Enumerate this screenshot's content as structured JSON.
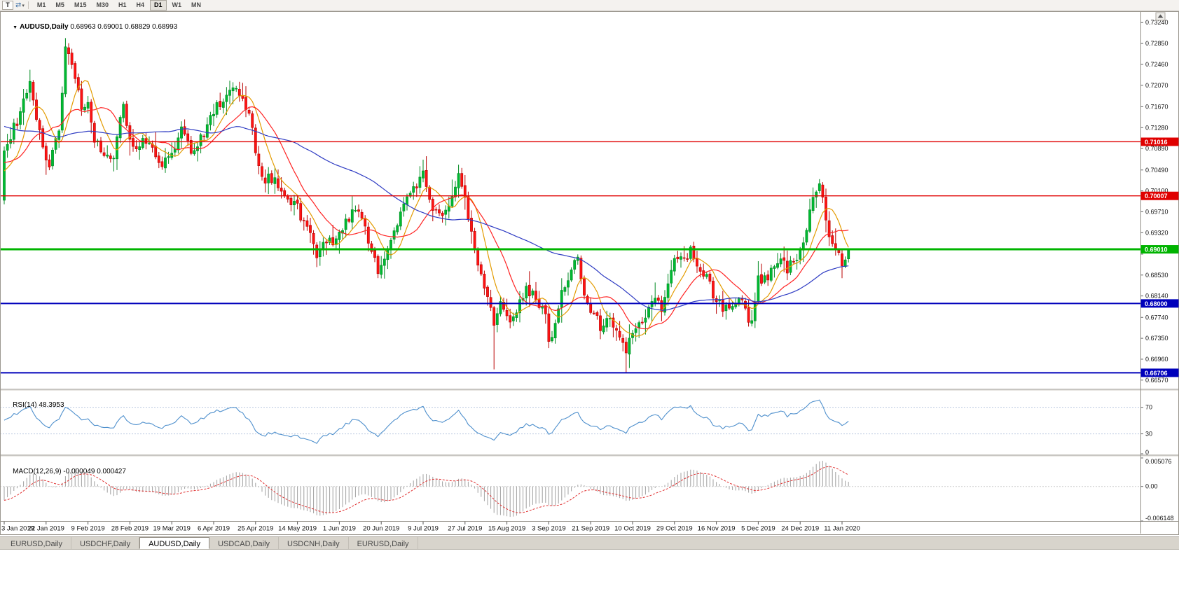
{
  "toolbar": {
    "tool_button": "T",
    "tool_icon": "⇄",
    "caret_icon": "▾",
    "timeframes": [
      "M1",
      "M5",
      "M15",
      "M30",
      "H1",
      "H4",
      "D1",
      "W1",
      "MN"
    ],
    "active_timeframe": "D1"
  },
  "chart": {
    "title": {
      "collapse_icon": "▼",
      "symbol": "AUDUSD,Daily",
      "ohlc": "0.68963 0.69001 0.68829 0.68993"
    }
  },
  "chart_data": {
    "type": "candlestick",
    "symbol": "AUDUSD",
    "timeframe": "Daily",
    "ohlc_display": {
      "open": "0.68963",
      "high": "0.69001",
      "low": "0.68829",
      "close": "0.68993"
    },
    "price_axis": {
      "labels": [
        "0.73240",
        "0.72850",
        "0.72460",
        "0.72070",
        "0.71670",
        "0.71280",
        "0.70890",
        "0.70490",
        "0.70100",
        "0.69710",
        "0.69320",
        "0.68920",
        "0.68530",
        "0.68140",
        "0.67740",
        "0.67350",
        "0.66960",
        "0.66570"
      ],
      "max": 0.734,
      "min": 0.6645
    },
    "x_axis": {
      "labels": [
        "3 Jan 2019",
        "22 Jan 2019",
        "9 Feb 2019",
        "28 Feb 2019",
        "19 Mar 2019",
        "6 Apr 2019",
        "25 Apr 2019",
        "14 May 2019",
        "1 Jun 2019",
        "20 Jun 2019",
        "9 Jul 2019",
        "27 Jul 2019",
        "15 Aug 2019",
        "3 Sep 2019",
        "21 Sep 2019",
        "10 Oct 2019",
        "29 Oct 2019",
        "16 Nov 2019",
        "5 Dec 2019",
        "24 Dec 2019",
        "11 Jan 2020"
      ],
      "candles_per_tick": 13
    },
    "levels": [
      {
        "label": "0.71016",
        "value": 0.71016,
        "color": "#e00000",
        "width": 1.4
      },
      {
        "label": "0.70007",
        "value": 0.70007,
        "color": "#e00000",
        "width": 1.4
      },
      {
        "label": "0.69010",
        "value": 0.6901,
        "color": "#00b400",
        "width": 3
      },
      {
        "label": "0.68000",
        "value": 0.68,
        "color": "#0000bb",
        "width": 2
      },
      {
        "label": "0.66706",
        "value": 0.66706,
        "color": "#0000bb",
        "width": 2
      }
    ],
    "candles": {
      "count": 323,
      "visible_from": 60,
      "seed": 42,
      "last_close": 0.68993,
      "anchors": [
        [
          0,
          0.7245
        ],
        [
          20,
          0.7165
        ],
        [
          40,
          0.711
        ],
        [
          56,
          0.706
        ],
        [
          59,
          0.6985
        ],
        [
          60,
          0.7085
        ],
        [
          62,
          0.712
        ],
        [
          65,
          0.715
        ],
        [
          68,
          0.7205
        ],
        [
          71,
          0.713
        ],
        [
          74,
          0.706
        ],
        [
          77,
          0.713
        ],
        [
          79,
          0.728
        ],
        [
          81,
          0.723
        ],
        [
          84,
          0.7155
        ],
        [
          86,
          0.719
        ],
        [
          88,
          0.71
        ],
        [
          91,
          0.7065
        ],
        [
          94,
          0.709
        ],
        [
          97,
          0.7155
        ],
        [
          99,
          0.711
        ],
        [
          102,
          0.7085
        ],
        [
          105,
          0.7105
        ],
        [
          108,
          0.707
        ],
        [
          112,
          0.7085
        ],
        [
          115,
          0.7125
        ],
        [
          118,
          0.7085
        ],
        [
          121,
          0.7105
        ],
        [
          125,
          0.714
        ],
        [
          128,
          0.7185
        ],
        [
          130,
          0.72
        ],
        [
          133,
          0.717
        ],
        [
          136,
          0.715
        ],
        [
          138,
          0.709
        ],
        [
          141,
          0.702
        ],
        [
          144,
          0.7035
        ],
        [
          147,
          0.6995
        ],
        [
          151,
          0.6985
        ],
        [
          154,
          0.6935
        ],
        [
          157,
          0.6875
        ],
        [
          160,
          0.6895
        ],
        [
          164,
          0.693
        ],
        [
          167,
          0.6965
        ],
        [
          170,
          0.6975
        ],
        [
          173,
          0.6925
        ],
        [
          176,
          0.687
        ],
        [
          177,
          0.689
        ],
        [
          180,
          0.6935
        ],
        [
          183,
          0.696
        ],
        [
          186,
          0.7005
        ],
        [
          189,
          0.7025
        ],
        [
          190,
          0.703
        ],
        [
          193,
          0.696
        ],
        [
          196,
          0.6975
        ],
        [
          199,
          0.7015
        ],
        [
          201,
          0.704
        ],
        [
          203,
          0.6985
        ],
        [
          206,
          0.69
        ],
        [
          209,
          0.6825
        ],
        [
          212,
          0.676
        ],
        [
          214,
          0.6785
        ],
        [
          216,
          0.6755
        ],
        [
          219,
          0.678
        ],
        [
          222,
          0.684
        ],
        [
          225,
          0.6815
        ],
        [
          228,
          0.677
        ],
        [
          229,
          0.672
        ],
        [
          232,
          0.679
        ],
        [
          235,
          0.6855
        ],
        [
          238,
          0.687
        ],
        [
          240,
          0.6825
        ],
        [
          242,
          0.677
        ],
        [
          245,
          0.675
        ],
        [
          248,
          0.676
        ],
        [
          251,
          0.672
        ],
        [
          253,
          0.67
        ],
        [
          255,
          0.6745
        ],
        [
          258,
          0.677
        ],
        [
          261,
          0.682
        ],
        [
          264,
          0.679
        ],
        [
          266,
          0.6855
        ],
        [
          268,
          0.687
        ],
        [
          271,
          0.6895
        ],
        [
          273,
          0.6905
        ],
        [
          276,
          0.686
        ],
        [
          279,
          0.6845
        ],
        [
          281,
          0.6795
        ],
        [
          284,
          0.679
        ],
        [
          287,
          0.681
        ],
        [
          290,
          0.6785
        ],
        [
          292,
          0.6765
        ],
        [
          294,
          0.684
        ],
        [
          297,
          0.6855
        ],
        [
          300,
          0.6885
        ],
        [
          303,
          0.6865
        ],
        [
          305,
          0.6885
        ],
        [
          307,
          0.69
        ],
        [
          309,
          0.6945
        ],
        [
          311,
          0.6985
        ],
        [
          313,
          0.702
        ],
        [
          315,
          0.696
        ],
        [
          317,
          0.692
        ],
        [
          319,
          0.688
        ],
        [
          320,
          0.687
        ],
        [
          322,
          0.68993
        ]
      ],
      "wick_overrides": {
        "79": {
          "high": 0.7295
        },
        "212": {
          "low": 0.6677
        },
        "253": {
          "low": 0.667
        },
        "313": {
          "high": 0.7032
        }
      }
    },
    "moving_averages": [
      {
        "name": "ma-fast",
        "period": 8,
        "color": "#e39b00"
      },
      {
        "name": "ma-mid",
        "period": 16,
        "color": "#ff2222"
      },
      {
        "name": "ma-slow",
        "period": 55,
        "color": "#2f3cc3"
      }
    ],
    "colors": {
      "up": "#00ba32",
      "up_border": "#008a22",
      "down": "#fe1414",
      "down_border": "#b80000"
    },
    "indicators": {
      "rsi": {
        "label": "RSI(14)",
        "value": "48.3953",
        "period": 14,
        "axis": [
          {
            "label": "70",
            "value": 70
          },
          {
            "label": "30",
            "value": 30
          },
          {
            "label": "0",
            "value": 0
          }
        ],
        "dashed_levels": [
          70,
          30
        ],
        "line_color": "#4f90cd",
        "range_max": 95
      },
      "macd": {
        "label": "MACD(12,26,9)",
        "value": "-0.000049 0.000427",
        "axis": [
          {
            "label": "0.005076",
            "value": 0.005076
          },
          {
            "label": "0.00",
            "value": 0
          },
          {
            "label": "-0.006148",
            "value": -0.006148
          }
        ],
        "bar_color": "#a0a0a0",
        "signal_color": "#e03030"
      }
    }
  },
  "tabs": [
    {
      "label": "EURUSD,Daily",
      "active": false
    },
    {
      "label": "USDCHF,Daily",
      "active": false
    },
    {
      "label": "AUDUSD,Daily",
      "active": true
    },
    {
      "label": "USDCAD,Daily",
      "active": false
    },
    {
      "label": "USDCNH,Daily",
      "active": false
    },
    {
      "label": "EURUSD,Daily",
      "active": false
    }
  ]
}
